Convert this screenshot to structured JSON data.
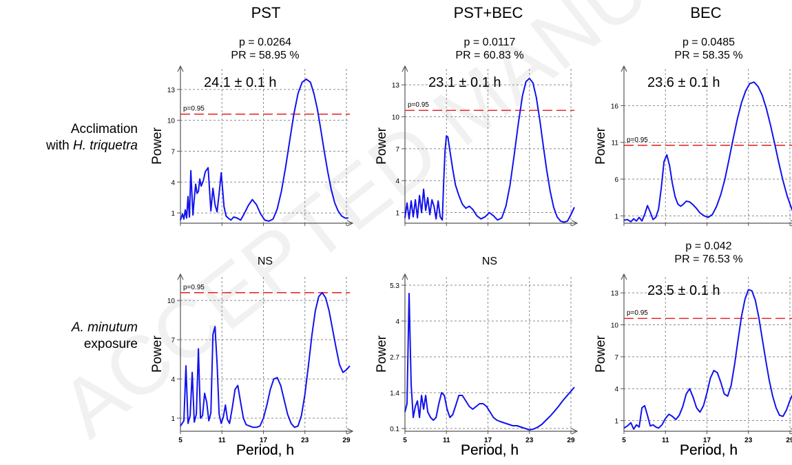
{
  "columns": [
    "PST",
    "PST+BEC",
    "BEC"
  ],
  "rows": [
    {
      "label_pre": "Acclimation",
      "label_line2_pre": "with ",
      "label_line2_italic": "H. triquetra"
    },
    {
      "label_italic": "A. minutum",
      "label_line2_pre": "exposure"
    }
  ],
  "watermark": "ACCEPTED MANUSCRIPT",
  "significance_label": "p=0.95",
  "chart_data": [
    {
      "type": "line",
      "row": 0,
      "col": 0,
      "stats": [
        "p = 0.0264",
        "PR = 58.95 %"
      ],
      "period_label": "24.1 ± 0.1 h",
      "xlabel": "Period, h",
      "ylabel": "Power",
      "xlim": [
        5,
        29.5
      ],
      "ylim": [
        0,
        15
      ],
      "yticks": [
        1,
        4,
        7,
        10,
        13
      ],
      "xticks": [
        5,
        11,
        17,
        23,
        29
      ],
      "xtick_labels_shown": false,
      "threshold": 10.6,
      "grid": true,
      "series": [
        {
          "x": [
            5,
            5.3,
            5.5,
            5.7,
            5.9,
            6.1,
            6.3,
            6.5,
            6.8,
            7,
            7.2,
            7.4,
            7.6,
            7.8,
            8,
            8.3,
            8.6,
            9,
            9.4,
            9.7,
            10,
            10.3,
            10.6,
            10.9,
            11.1,
            11.3,
            11.6,
            11.9,
            12.3,
            12.7,
            13.2,
            13.7,
            14.2,
            14.8,
            15.4,
            16,
            16.6,
            17.2,
            17.8,
            18.4,
            19,
            19.6,
            20.2,
            20.8,
            21.4,
            22,
            22.6,
            23.2,
            23.8,
            24.3,
            24.8,
            25.3,
            25.8,
            26.3,
            26.8,
            27.3,
            27.8,
            28.3,
            28.8,
            29.3
          ],
          "y": [
            0.3,
            0.9,
            0.4,
            1.3,
            0.5,
            2.6,
            0.6,
            5.1,
            0.8,
            2.4,
            3.8,
            2.9,
            3.1,
            4.3,
            3.6,
            4.1,
            5.0,
            5.4,
            1.2,
            3.4,
            1.8,
            1.1,
            2.9,
            4.9,
            3.3,
            1.6,
            0.7,
            0.5,
            0.3,
            0.6,
            0.5,
            0.3,
            0.9,
            1.7,
            2.3,
            1.8,
            0.9,
            0.3,
            0.2,
            0.4,
            1.4,
            3.1,
            5.4,
            8.0,
            10.6,
            12.6,
            13.7,
            14.0,
            13.7,
            12.6,
            11.1,
            9.1,
            7.0,
            5.0,
            3.3,
            2.0,
            1.2,
            0.7,
            0.5,
            0.5
          ]
        }
      ]
    },
    {
      "type": "line",
      "row": 0,
      "col": 1,
      "stats": [
        "p = 0.0117",
        "PR = 60.83 %"
      ],
      "period_label": "23.1 ± 0.1 h",
      "xlabel": "Period, h",
      "ylabel": "Power",
      "xlim": [
        5,
        29.5
      ],
      "ylim": [
        0,
        14.5
      ],
      "yticks": [
        1,
        4,
        7,
        10,
        13
      ],
      "xticks": [
        5,
        11,
        17,
        23,
        29
      ],
      "xtick_labels_shown": false,
      "threshold": 10.6,
      "grid": true,
      "series": [
        {
          "x": [
            5,
            5.3,
            5.6,
            5.9,
            6.2,
            6.5,
            6.8,
            7.1,
            7.4,
            7.7,
            8,
            8.3,
            8.6,
            8.9,
            9.2,
            9.5,
            9.8,
            10.1,
            10.4,
            10.6,
            10.8,
            11,
            11.2,
            11.5,
            11.9,
            12.3,
            12.8,
            13.3,
            13.8,
            14.3,
            14.8,
            15.4,
            16,
            16.6,
            17.2,
            17.8,
            18.4,
            19,
            19.6,
            20.2,
            20.8,
            21.4,
            22,
            22.5,
            23,
            23.5,
            24,
            24.5,
            25,
            25.5,
            26,
            26.5,
            27,
            27.5,
            28,
            28.5,
            29,
            29.5
          ],
          "y": [
            0.5,
            1.9,
            0.4,
            2.1,
            0.6,
            2.2,
            0.5,
            2.6,
            1.0,
            3.2,
            1.2,
            2.4,
            0.8,
            2.2,
            1.6,
            0.4,
            2.1,
            0.6,
            0.3,
            3.8,
            6.8,
            8.2,
            8.1,
            6.8,
            5.1,
            3.6,
            2.6,
            1.8,
            1.4,
            1.6,
            1.3,
            0.7,
            0.4,
            0.6,
            1.0,
            0.7,
            0.3,
            0.5,
            1.6,
            3.6,
            6.4,
            9.4,
            12.0,
            13.3,
            13.6,
            13.2,
            11.8,
            9.7,
            7.3,
            5.0,
            3.0,
            1.5,
            0.6,
            0.2,
            0.1,
            0.2,
            0.8,
            1.5
          ]
        }
      ]
    },
    {
      "type": "line",
      "row": 0,
      "col": 2,
      "stats": [
        "p = 0.0485",
        "PR = 58.35 %"
      ],
      "period_label": "23.6 ± 0.1 h",
      "xlabel": "Period, h",
      "ylabel": "Power",
      "xlim": [
        5,
        29.5
      ],
      "ylim": [
        0,
        21
      ],
      "yticks": [
        1,
        6,
        11,
        16
      ],
      "xticks": [
        5,
        11,
        17,
        23,
        29
      ],
      "xtick_labels_shown": false,
      "threshold": 10.6,
      "grid": true,
      "series": [
        {
          "x": [
            5,
            5.5,
            6,
            6.4,
            6.8,
            7.2,
            7.6,
            8,
            8.4,
            8.8,
            9.2,
            9.6,
            10,
            10.4,
            10.8,
            11.2,
            11.6,
            12,
            12.4,
            12.8,
            13.2,
            13.6,
            14,
            14.5,
            15,
            15.5,
            16,
            16.6,
            17.2,
            17.8,
            18.4,
            19,
            19.6,
            20.2,
            20.8,
            21.4,
            22,
            22.6,
            23.2,
            23.8,
            24.4,
            25,
            25.6,
            26.2,
            26.8,
            27.4,
            28,
            28.6,
            29.2,
            29.5
          ],
          "y": [
            0.4,
            0.5,
            0.2,
            0.6,
            0.3,
            0.8,
            0.3,
            1.2,
            2.4,
            1.5,
            0.5,
            0.8,
            1.9,
            4.8,
            8.4,
            9.3,
            7.8,
            5.4,
            3.6,
            2.6,
            2.3,
            2.6,
            3.0,
            2.9,
            2.5,
            2.0,
            1.4,
            1.0,
            0.8,
            1.2,
            2.3,
            3.9,
            6.0,
            8.7,
            11.5,
            14.2,
            16.4,
            18.0,
            19.0,
            19.2,
            18.6,
            17.4,
            15.6,
            13.3,
            10.8,
            8.2,
            5.8,
            3.7,
            2.1,
            1.4
          ]
        }
      ]
    },
    {
      "type": "line",
      "row": 1,
      "col": 0,
      "stats": [
        "NS"
      ],
      "period_label": "",
      "xlabel": "Period, h",
      "ylabel": "Power",
      "xlim": [
        5,
        29.5
      ],
      "ylim": [
        0,
        11.8
      ],
      "yticks": [
        1,
        4,
        7,
        10
      ],
      "xticks": [
        5,
        11,
        17,
        23,
        29
      ],
      "xtick_labels_shown": false,
      "threshold": 10.6,
      "grid": true,
      "series": [
        {
          "x": [
            5,
            5.5,
            5.8,
            6.1,
            6.4,
            6.7,
            7,
            7.3,
            7.6,
            7.9,
            8.2,
            8.5,
            8.8,
            9.1,
            9.4,
            9.7,
            10,
            10.3,
            10.6,
            10.9,
            11.2,
            11.5,
            11.8,
            12.1,
            12.5,
            12.9,
            13.3,
            13.7,
            14.1,
            14.5,
            15,
            15.5,
            16,
            16.5,
            17,
            17.5,
            18,
            18.5,
            19,
            19.5,
            20,
            20.5,
            21,
            21.5,
            22,
            22.5,
            23,
            23.5,
            24,
            24.5,
            25,
            25.5,
            26,
            26.5,
            27,
            27.5,
            28,
            28.5,
            29,
            29.5
          ],
          "y": [
            0.4,
            0.8,
            5.0,
            0.6,
            1.2,
            4.5,
            0.7,
            1.3,
            6.3,
            1.0,
            1.2,
            2.9,
            2.2,
            0.8,
            1.4,
            7.4,
            8.0,
            5.2,
            1.3,
            0.6,
            1.1,
            2.0,
            0.9,
            0.6,
            1.8,
            3.2,
            3.5,
            2.2,
            1.0,
            0.5,
            0.4,
            0.3,
            0.3,
            0.4,
            1.0,
            2.0,
            3.2,
            4.0,
            4.1,
            3.5,
            2.4,
            1.3,
            0.6,
            0.3,
            0.4,
            1.2,
            2.8,
            5.0,
            7.3,
            9.2,
            10.3,
            10.6,
            10.2,
            9.2,
            7.8,
            6.4,
            5.1,
            4.5,
            4.7,
            5.0
          ]
        }
      ]
    },
    {
      "type": "line",
      "row": 1,
      "col": 1,
      "stats": [
        "NS"
      ],
      "period_label": "",
      "xlabel": "Period, h",
      "ylabel": "Power",
      "xlim": [
        5,
        29.5
      ],
      "ylim": [
        0,
        5.6
      ],
      "yticks": [
        0.1,
        1.4,
        2.7,
        4,
        5.3
      ],
      "xticks": [
        5,
        11,
        17,
        23,
        29
      ],
      "xtick_labels_shown": false,
      "threshold": null,
      "grid": true,
      "series": [
        {
          "x": [
            5,
            5.3,
            5.6,
            5.9,
            6.2,
            6.5,
            6.8,
            7.1,
            7.4,
            7.7,
            8,
            8.3,
            8.7,
            9.1,
            9.5,
            9.9,
            10.3,
            10.7,
            11.1,
            11.5,
            11.9,
            12.3,
            12.8,
            13.3,
            13.8,
            14.3,
            14.8,
            15.3,
            15.8,
            16.3,
            16.8,
            17.3,
            17.8,
            18.3,
            18.8,
            19.4,
            20,
            20.6,
            21.2,
            21.8,
            22.4,
            23,
            23.6,
            24.2,
            24.8,
            25.4,
            26,
            26.6,
            27.2,
            27.8,
            28.4,
            29,
            29.5
          ],
          "y": [
            0.7,
            1.0,
            5.0,
            1.7,
            0.5,
            0.9,
            1.1,
            0.5,
            1.3,
            0.8,
            1.3,
            0.7,
            0.5,
            0.4,
            0.5,
            1.0,
            1.4,
            1.3,
            0.8,
            0.5,
            0.6,
            0.9,
            1.3,
            1.3,
            1.1,
            0.9,
            0.8,
            0.9,
            1.0,
            1.0,
            0.9,
            0.7,
            0.5,
            0.4,
            0.35,
            0.3,
            0.25,
            0.2,
            0.2,
            0.15,
            0.1,
            0.05,
            0.08,
            0.15,
            0.25,
            0.4,
            0.55,
            0.72,
            0.9,
            1.1,
            1.28,
            1.45,
            1.6
          ]
        }
      ]
    },
    {
      "type": "line",
      "row": 1,
      "col": 2,
      "stats": [
        "p = 0.042",
        "PR = 76.53 %"
      ],
      "period_label": "23.5 ± 0.1 h",
      "xlabel": "Period, h",
      "ylabel": "Power",
      "xlim": [
        5,
        29.5
      ],
      "ylim": [
        0,
        14.5
      ],
      "yticks": [
        1,
        4,
        7,
        10,
        13
      ],
      "xticks": [
        5,
        11,
        17,
        23,
        29
      ],
      "xtick_labels_shown": false,
      "threshold": 10.6,
      "grid": true,
      "series": [
        {
          "x": [
            5,
            5.5,
            6,
            6.4,
            6.8,
            7.2,
            7.6,
            8,
            8.4,
            8.8,
            9.2,
            9.6,
            10,
            10.5,
            11,
            11.5,
            12,
            12.5,
            13,
            13.5,
            14,
            14.5,
            15,
            15.5,
            16,
            16.5,
            17,
            17.5,
            18,
            18.5,
            19,
            19.5,
            20,
            20.5,
            21,
            21.5,
            22,
            22.5,
            23,
            23.5,
            24,
            24.5,
            25,
            25.5,
            26,
            26.5,
            27,
            27.5,
            28,
            28.5,
            29,
            29.5
          ],
          "y": [
            0.3,
            0.5,
            0.8,
            0.2,
            0.6,
            0.4,
            2.2,
            2.4,
            1.5,
            0.5,
            0.6,
            0.4,
            0.3,
            0.6,
            1.2,
            1.6,
            1.4,
            1.1,
            1.5,
            2.3,
            3.5,
            4.0,
            3.2,
            2.2,
            1.8,
            2.4,
            3.6,
            5.0,
            5.7,
            5.5,
            4.6,
            3.5,
            3.3,
            4.3,
            6.3,
            8.6,
            10.8,
            12.4,
            13.3,
            13.2,
            12.3,
            10.7,
            8.7,
            6.7,
            4.8,
            3.3,
            2.2,
            1.5,
            1.4,
            2.0,
            2.9,
            3.6
          ]
        }
      ]
    }
  ]
}
